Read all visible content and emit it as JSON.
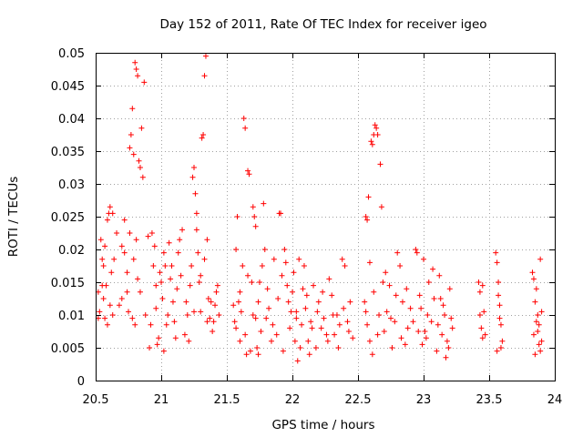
{
  "chart_data": {
    "type": "scatter",
    "title": "Day 152 of 2011, Rate Of TEC Index for receiver igeo",
    "xlabel": "GPS time / hours",
    "ylabel": "ROTI / TECUs",
    "xlim": [
      20.5,
      24
    ],
    "ylim": [
      0,
      0.05
    ],
    "xticks": [
      20.5,
      21,
      21.5,
      22,
      22.5,
      23,
      23.5,
      24
    ],
    "xtick_labels": [
      "20.5",
      "21",
      "21.5",
      "22",
      "22.5",
      "23",
      "23.5",
      "24"
    ],
    "yticks": [
      0,
      0.005,
      0.01,
      0.015,
      0.02,
      0.025,
      0.03,
      0.035,
      0.04,
      0.045,
      0.05
    ],
    "ytick_labels": [
      "0",
      "0.005",
      "0.01",
      "0.015",
      "0.02",
      "0.025",
      "0.03",
      "0.035",
      "0.04",
      "0.045",
      "0.05"
    ],
    "grid": true,
    "marker": "+",
    "color": "#ff0000",
    "series": [
      {
        "name": "ROTI",
        "points": [
          [
            20.52,
            0.0135
          ],
          [
            20.53,
            0.0105
          ],
          [
            20.54,
            0.0215
          ],
          [
            20.55,
            0.0185
          ],
          [
            20.56,
            0.0125
          ],
          [
            20.57,
            0.0095
          ],
          [
            20.58,
            0.0145
          ],
          [
            20.59,
            0.0245
          ],
          [
            20.6,
            0.0255
          ],
          [
            20.61,
            0.0265
          ],
          [
            20.62,
            0.0165
          ],
          [
            20.63,
            0.01
          ],
          [
            20.64,
            0.0185
          ],
          [
            20.55,
            0.0145
          ],
          [
            20.57,
            0.0205
          ],
          [
            20.59,
            0.0085
          ],
          [
            20.61,
            0.0115
          ],
          [
            20.63,
            0.0255
          ],
          [
            20.56,
            0.0175
          ],
          [
            20.52,
            0.0095
          ],
          [
            20.66,
            0.0225
          ],
          [
            20.68,
            0.0115
          ],
          [
            20.7,
            0.0205
          ],
          [
            20.72,
            0.0245
          ],
          [
            20.74,
            0.0165
          ],
          [
            20.75,
            0.0105
          ],
          [
            20.76,
            0.0355
          ],
          [
            20.77,
            0.0375
          ],
          [
            20.78,
            0.0415
          ],
          [
            20.79,
            0.0345
          ],
          [
            20.8,
            0.0485
          ],
          [
            20.81,
            0.0475
          ],
          [
            20.82,
            0.0465
          ],
          [
            20.83,
            0.0335
          ],
          [
            20.84,
            0.0325
          ],
          [
            20.85,
            0.0385
          ],
          [
            20.86,
            0.031
          ],
          [
            20.87,
            0.0455
          ],
          [
            20.78,
            0.0095
          ],
          [
            20.8,
            0.0085
          ],
          [
            20.82,
            0.0155
          ],
          [
            20.84,
            0.0135
          ],
          [
            20.79,
            0.0185
          ],
          [
            20.81,
            0.0215
          ],
          [
            20.76,
            0.0225
          ],
          [
            20.74,
            0.0135
          ],
          [
            20.72,
            0.0195
          ],
          [
            20.7,
            0.0125
          ],
          [
            20.88,
            0.01
          ],
          [
            20.9,
            0.022
          ],
          [
            20.91,
            0.005
          ],
          [
            20.92,
            0.0085
          ],
          [
            20.94,
            0.0175
          ],
          [
            20.95,
            0.0205
          ],
          [
            20.96,
            0.0145
          ],
          [
            20.97,
            0.0055
          ],
          [
            20.98,
            0.0065
          ],
          [
            21.0,
            0.015
          ],
          [
            21.01,
            0.0125
          ],
          [
            21.02,
            0.0195
          ],
          [
            21.03,
            0.0175
          ],
          [
            21.04,
            0.0085
          ],
          [
            21.05,
            0.01
          ],
          [
            21.06,
            0.021
          ],
          [
            21.07,
            0.0155
          ],
          [
            21.08,
            0.0175
          ],
          [
            21.09,
            0.012
          ],
          [
            21.1,
            0.009
          ],
          [
            21.12,
            0.014
          ],
          [
            21.14,
            0.0215
          ],
          [
            21.15,
            0.016
          ],
          [
            21.16,
            0.023
          ],
          [
            20.93,
            0.0225
          ],
          [
            20.99,
            0.0165
          ],
          [
            21.11,
            0.0065
          ],
          [
            21.13,
            0.0195
          ],
          [
            20.96,
            0.011
          ],
          [
            21.02,
            0.0045
          ],
          [
            21.18,
            0.007
          ],
          [
            21.2,
            0.01
          ],
          [
            21.22,
            0.0145
          ],
          [
            21.24,
            0.031
          ],
          [
            21.25,
            0.0325
          ],
          [
            21.26,
            0.0285
          ],
          [
            21.27,
            0.023
          ],
          [
            21.28,
            0.0195
          ],
          [
            21.29,
            0.015
          ],
          [
            21.3,
            0.0105
          ],
          [
            21.31,
            0.037
          ],
          [
            21.32,
            0.0375
          ],
          [
            21.33,
            0.0465
          ],
          [
            21.34,
            0.0495
          ],
          [
            21.35,
            0.0215
          ],
          [
            21.36,
            0.0125
          ],
          [
            21.37,
            0.0095
          ],
          [
            21.38,
            0.012
          ],
          [
            21.4,
            0.009
          ],
          [
            21.42,
            0.0135
          ],
          [
            21.44,
            0.01
          ],
          [
            21.21,
            0.006
          ],
          [
            21.23,
            0.0175
          ],
          [
            21.27,
            0.0255
          ],
          [
            21.3,
            0.016
          ],
          [
            21.33,
            0.0185
          ],
          [
            21.39,
            0.0075
          ],
          [
            21.41,
            0.0115
          ],
          [
            21.43,
            0.0145
          ],
          [
            21.25,
            0.0105
          ],
          [
            21.19,
            0.012
          ],
          [
            21.35,
            0.009
          ],
          [
            21.55,
            0.0115
          ],
          [
            21.56,
            0.009
          ],
          [
            21.57,
            0.02
          ],
          [
            21.58,
            0.025
          ],
          [
            21.59,
            0.012
          ],
          [
            21.6,
            0.006
          ],
          [
            21.61,
            0.0105
          ],
          [
            21.62,
            0.0175
          ],
          [
            21.63,
            0.04
          ],
          [
            21.64,
            0.0385
          ],
          [
            21.65,
            0.004
          ],
          [
            21.66,
            0.032
          ],
          [
            21.67,
            0.0315
          ],
          [
            21.68,
            0.0045
          ],
          [
            21.69,
            0.015
          ],
          [
            21.7,
            0.0265
          ],
          [
            21.71,
            0.025
          ],
          [
            21.72,
            0.0235
          ],
          [
            21.73,
            0.005
          ],
          [
            21.74,
            0.012
          ],
          [
            21.75,
            0.015
          ],
          [
            21.76,
            0.0075
          ],
          [
            21.78,
            0.027
          ],
          [
            21.79,
            0.02
          ],
          [
            21.8,
            0.0095
          ],
          [
            21.82,
            0.011
          ],
          [
            21.84,
            0.006
          ],
          [
            21.86,
            0.0185
          ],
          [
            21.88,
            0.007
          ],
          [
            21.9,
            0.0255
          ],
          [
            21.91,
            0.0255
          ],
          [
            21.92,
            0.016
          ],
          [
            21.93,
            0.0045
          ],
          [
            21.94,
            0.02
          ],
          [
            21.95,
            0.018
          ],
          [
            21.96,
            0.0145
          ],
          [
            21.97,
            0.012
          ],
          [
            21.98,
            0.008
          ],
          [
            21.99,
            0.0105
          ],
          [
            21.6,
            0.0135
          ],
          [
            21.64,
            0.007
          ],
          [
            21.7,
            0.01
          ],
          [
            21.74,
            0.004
          ],
          [
            21.77,
            0.0175
          ],
          [
            21.81,
            0.014
          ],
          [
            21.85,
            0.0085
          ],
          [
            21.89,
            0.0125
          ],
          [
            21.57,
            0.008
          ],
          [
            21.66,
            0.016
          ],
          [
            21.72,
            0.0095
          ],
          [
            22.0,
            0.0135
          ],
          [
            22.01,
            0.0165
          ],
          [
            22.02,
            0.006
          ],
          [
            22.03,
            0.0105
          ],
          [
            22.04,
            0.003
          ],
          [
            22.05,
            0.0185
          ],
          [
            22.06,
            0.005
          ],
          [
            22.07,
            0.0085
          ],
          [
            22.08,
            0.014
          ],
          [
            22.1,
            0.011
          ],
          [
            22.12,
            0.006
          ],
          [
            22.14,
            0.009
          ],
          [
            22.16,
            0.0145
          ],
          [
            22.18,
            0.005
          ],
          [
            22.2,
            0.012
          ],
          [
            22.22,
            0.008
          ],
          [
            22.24,
            0.0095
          ],
          [
            22.26,
            0.007
          ],
          [
            22.28,
            0.0155
          ],
          [
            22.3,
            0.013
          ],
          [
            22.32,
            0.007
          ],
          [
            22.34,
            0.01
          ],
          [
            22.36,
            0.0085
          ],
          [
            22.38,
            0.0185
          ],
          [
            22.4,
            0.0175
          ],
          [
            22.42,
            0.009
          ],
          [
            22.44,
            0.012
          ],
          [
            22.46,
            0.0065
          ],
          [
            22.09,
            0.0175
          ],
          [
            22.11,
            0.013
          ],
          [
            22.15,
            0.008
          ],
          [
            22.19,
            0.0105
          ],
          [
            22.23,
            0.0135
          ],
          [
            22.27,
            0.006
          ],
          [
            22.31,
            0.01
          ],
          [
            22.35,
            0.005
          ],
          [
            22.39,
            0.011
          ],
          [
            22.43,
            0.0075
          ],
          [
            22.03,
            0.0095
          ],
          [
            22.13,
            0.004
          ],
          [
            22.55,
            0.012
          ],
          [
            22.56,
            0.025
          ],
          [
            22.57,
            0.0245
          ],
          [
            22.58,
            0.028
          ],
          [
            22.59,
            0.018
          ],
          [
            22.6,
            0.0365
          ],
          [
            22.61,
            0.036
          ],
          [
            22.62,
            0.0375
          ],
          [
            22.63,
            0.039
          ],
          [
            22.64,
            0.0385
          ],
          [
            22.65,
            0.0375
          ],
          [
            22.66,
            0.01
          ],
          [
            22.67,
            0.033
          ],
          [
            22.68,
            0.0265
          ],
          [
            22.69,
            0.015
          ],
          [
            22.7,
            0.0075
          ],
          [
            22.72,
            0.0105
          ],
          [
            22.74,
            0.0145
          ],
          [
            22.76,
            0.005
          ],
          [
            22.78,
            0.009
          ],
          [
            22.8,
            0.0195
          ],
          [
            22.82,
            0.0175
          ],
          [
            22.84,
            0.012
          ],
          [
            22.86,
            0.0055
          ],
          [
            22.88,
            0.008
          ],
          [
            22.9,
            0.011
          ],
          [
            22.57,
            0.0085
          ],
          [
            22.59,
            0.006
          ],
          [
            22.62,
            0.0135
          ],
          [
            22.65,
            0.007
          ],
          [
            22.71,
            0.0165
          ],
          [
            22.75,
            0.0095
          ],
          [
            22.79,
            0.013
          ],
          [
            22.83,
            0.0065
          ],
          [
            22.87,
            0.014
          ],
          [
            22.56,
            0.0105
          ],
          [
            22.61,
            0.004
          ],
          [
            22.92,
            0.009
          ],
          [
            22.94,
            0.02
          ],
          [
            22.95,
            0.0195
          ],
          [
            22.96,
            0.0075
          ],
          [
            22.98,
            0.011
          ],
          [
            23.0,
            0.0185
          ],
          [
            23.02,
            0.0065
          ],
          [
            23.04,
            0.015
          ],
          [
            23.06,
            0.009
          ],
          [
            23.08,
            0.0125
          ],
          [
            23.1,
            0.0045
          ],
          [
            23.12,
            0.016
          ],
          [
            23.14,
            0.007
          ],
          [
            23.16,
            0.01
          ],
          [
            23.18,
            0.006
          ],
          [
            23.2,
            0.014
          ],
          [
            23.22,
            0.008
          ],
          [
            22.97,
            0.013
          ],
          [
            22.99,
            0.0055
          ],
          [
            23.03,
            0.01
          ],
          [
            23.07,
            0.017
          ],
          [
            23.11,
            0.0085
          ],
          [
            23.15,
            0.0115
          ],
          [
            23.19,
            0.005
          ],
          [
            23.21,
            0.0095
          ],
          [
            23.01,
            0.0075
          ],
          [
            23.13,
            0.0125
          ],
          [
            23.17,
            0.0035
          ],
          [
            23.42,
            0.015
          ],
          [
            23.43,
            0.0135
          ],
          [
            23.44,
            0.008
          ],
          [
            23.45,
            0.0065
          ],
          [
            23.46,
            0.0105
          ],
          [
            23.47,
            0.007
          ],
          [
            23.43,
            0.01
          ],
          [
            23.45,
            0.0145
          ],
          [
            23.55,
            0.0195
          ],
          [
            23.56,
            0.018
          ],
          [
            23.57,
            0.015
          ],
          [
            23.58,
            0.0115
          ],
          [
            23.59,
            0.0085
          ],
          [
            23.6,
            0.006
          ],
          [
            23.56,
            0.0045
          ],
          [
            23.57,
            0.013
          ],
          [
            23.58,
            0.0095
          ],
          [
            23.59,
            0.005
          ],
          [
            23.83,
            0.0165
          ],
          [
            23.84,
            0.0155
          ],
          [
            23.85,
            0.012
          ],
          [
            23.86,
            0.009
          ],
          [
            23.87,
            0.0075
          ],
          [
            23.88,
            0.0055
          ],
          [
            23.89,
            0.0185
          ],
          [
            23.9,
            0.0105
          ],
          [
            23.85,
            0.004
          ],
          [
            23.86,
            0.014
          ],
          [
            23.87,
            0.01
          ],
          [
            23.88,
            0.0085
          ],
          [
            23.89,
            0.0045
          ],
          [
            23.84,
            0.007
          ],
          [
            23.9,
            0.006
          ]
        ]
      }
    ]
  }
}
